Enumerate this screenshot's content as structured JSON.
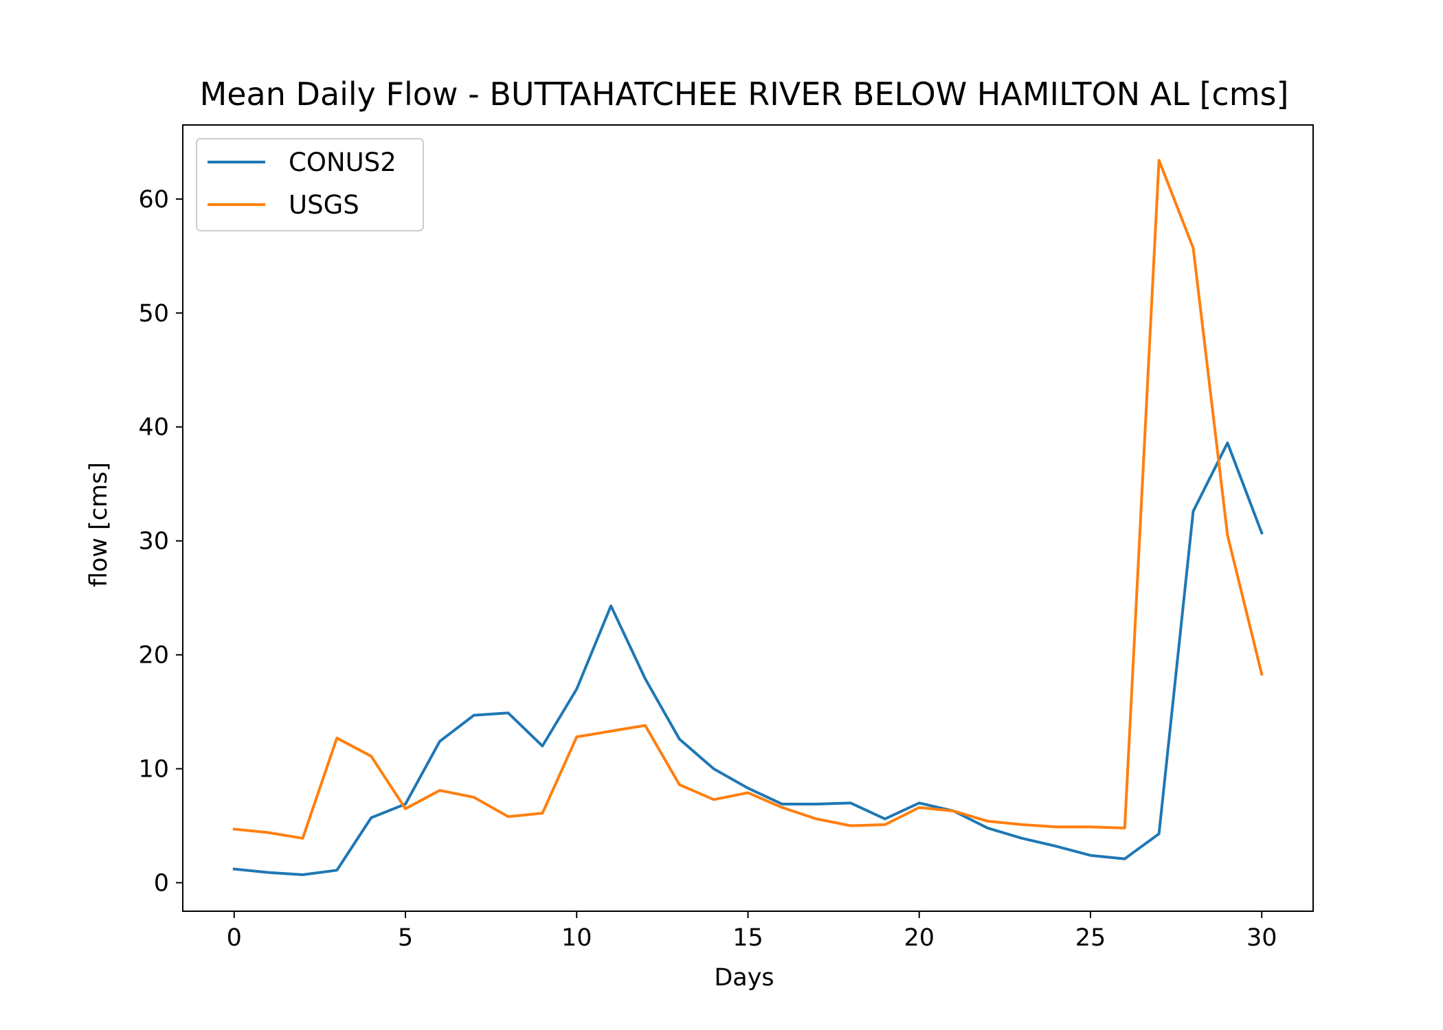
{
  "chart_data": {
    "type": "line",
    "title": "Mean Daily Flow - BUTTAHATCHEE RIVER BELOW HAMILTON AL [cms]",
    "xlabel": "Days",
    "ylabel": "flow [cms]",
    "xlim": [
      -1.5,
      31.5
    ],
    "ylim": [
      -2.5,
      66.5
    ],
    "xticks": [
      0,
      5,
      10,
      15,
      20,
      25,
      30
    ],
    "yticks": [
      0,
      10,
      20,
      30,
      40,
      50,
      60
    ],
    "grid": false,
    "legend_position": "top-left",
    "x": [
      0,
      1,
      2,
      3,
      4,
      5,
      6,
      7,
      8,
      9,
      10,
      11,
      12,
      13,
      14,
      15,
      16,
      17,
      18,
      19,
      20,
      21,
      22,
      23,
      24,
      25,
      26,
      27,
      28,
      29,
      30
    ],
    "series": [
      {
        "name": "CONUS2",
        "color": "#1f77b4",
        "values": [
          1.2,
          0.9,
          0.7,
          1.1,
          5.7,
          6.9,
          12.4,
          14.7,
          14.9,
          12.0,
          17.0,
          24.3,
          17.9,
          12.6,
          10.0,
          8.3,
          6.9,
          6.9,
          7.0,
          5.6,
          7.0,
          6.3,
          4.8,
          3.9,
          3.2,
          2.4,
          2.1,
          4.3,
          32.6,
          38.6,
          30.7
        ]
      },
      {
        "name": "USGS",
        "color": "#ff7f0e",
        "values": [
          4.7,
          4.4,
          3.9,
          12.7,
          11.1,
          6.5,
          8.1,
          7.5,
          5.8,
          6.1,
          12.8,
          13.3,
          13.8,
          8.6,
          7.3,
          7.9,
          6.6,
          5.6,
          5.0,
          5.1,
          6.6,
          6.3,
          5.4,
          5.1,
          4.9,
          4.9,
          4.8,
          63.4,
          55.7,
          30.5,
          18.3
        ]
      }
    ]
  }
}
